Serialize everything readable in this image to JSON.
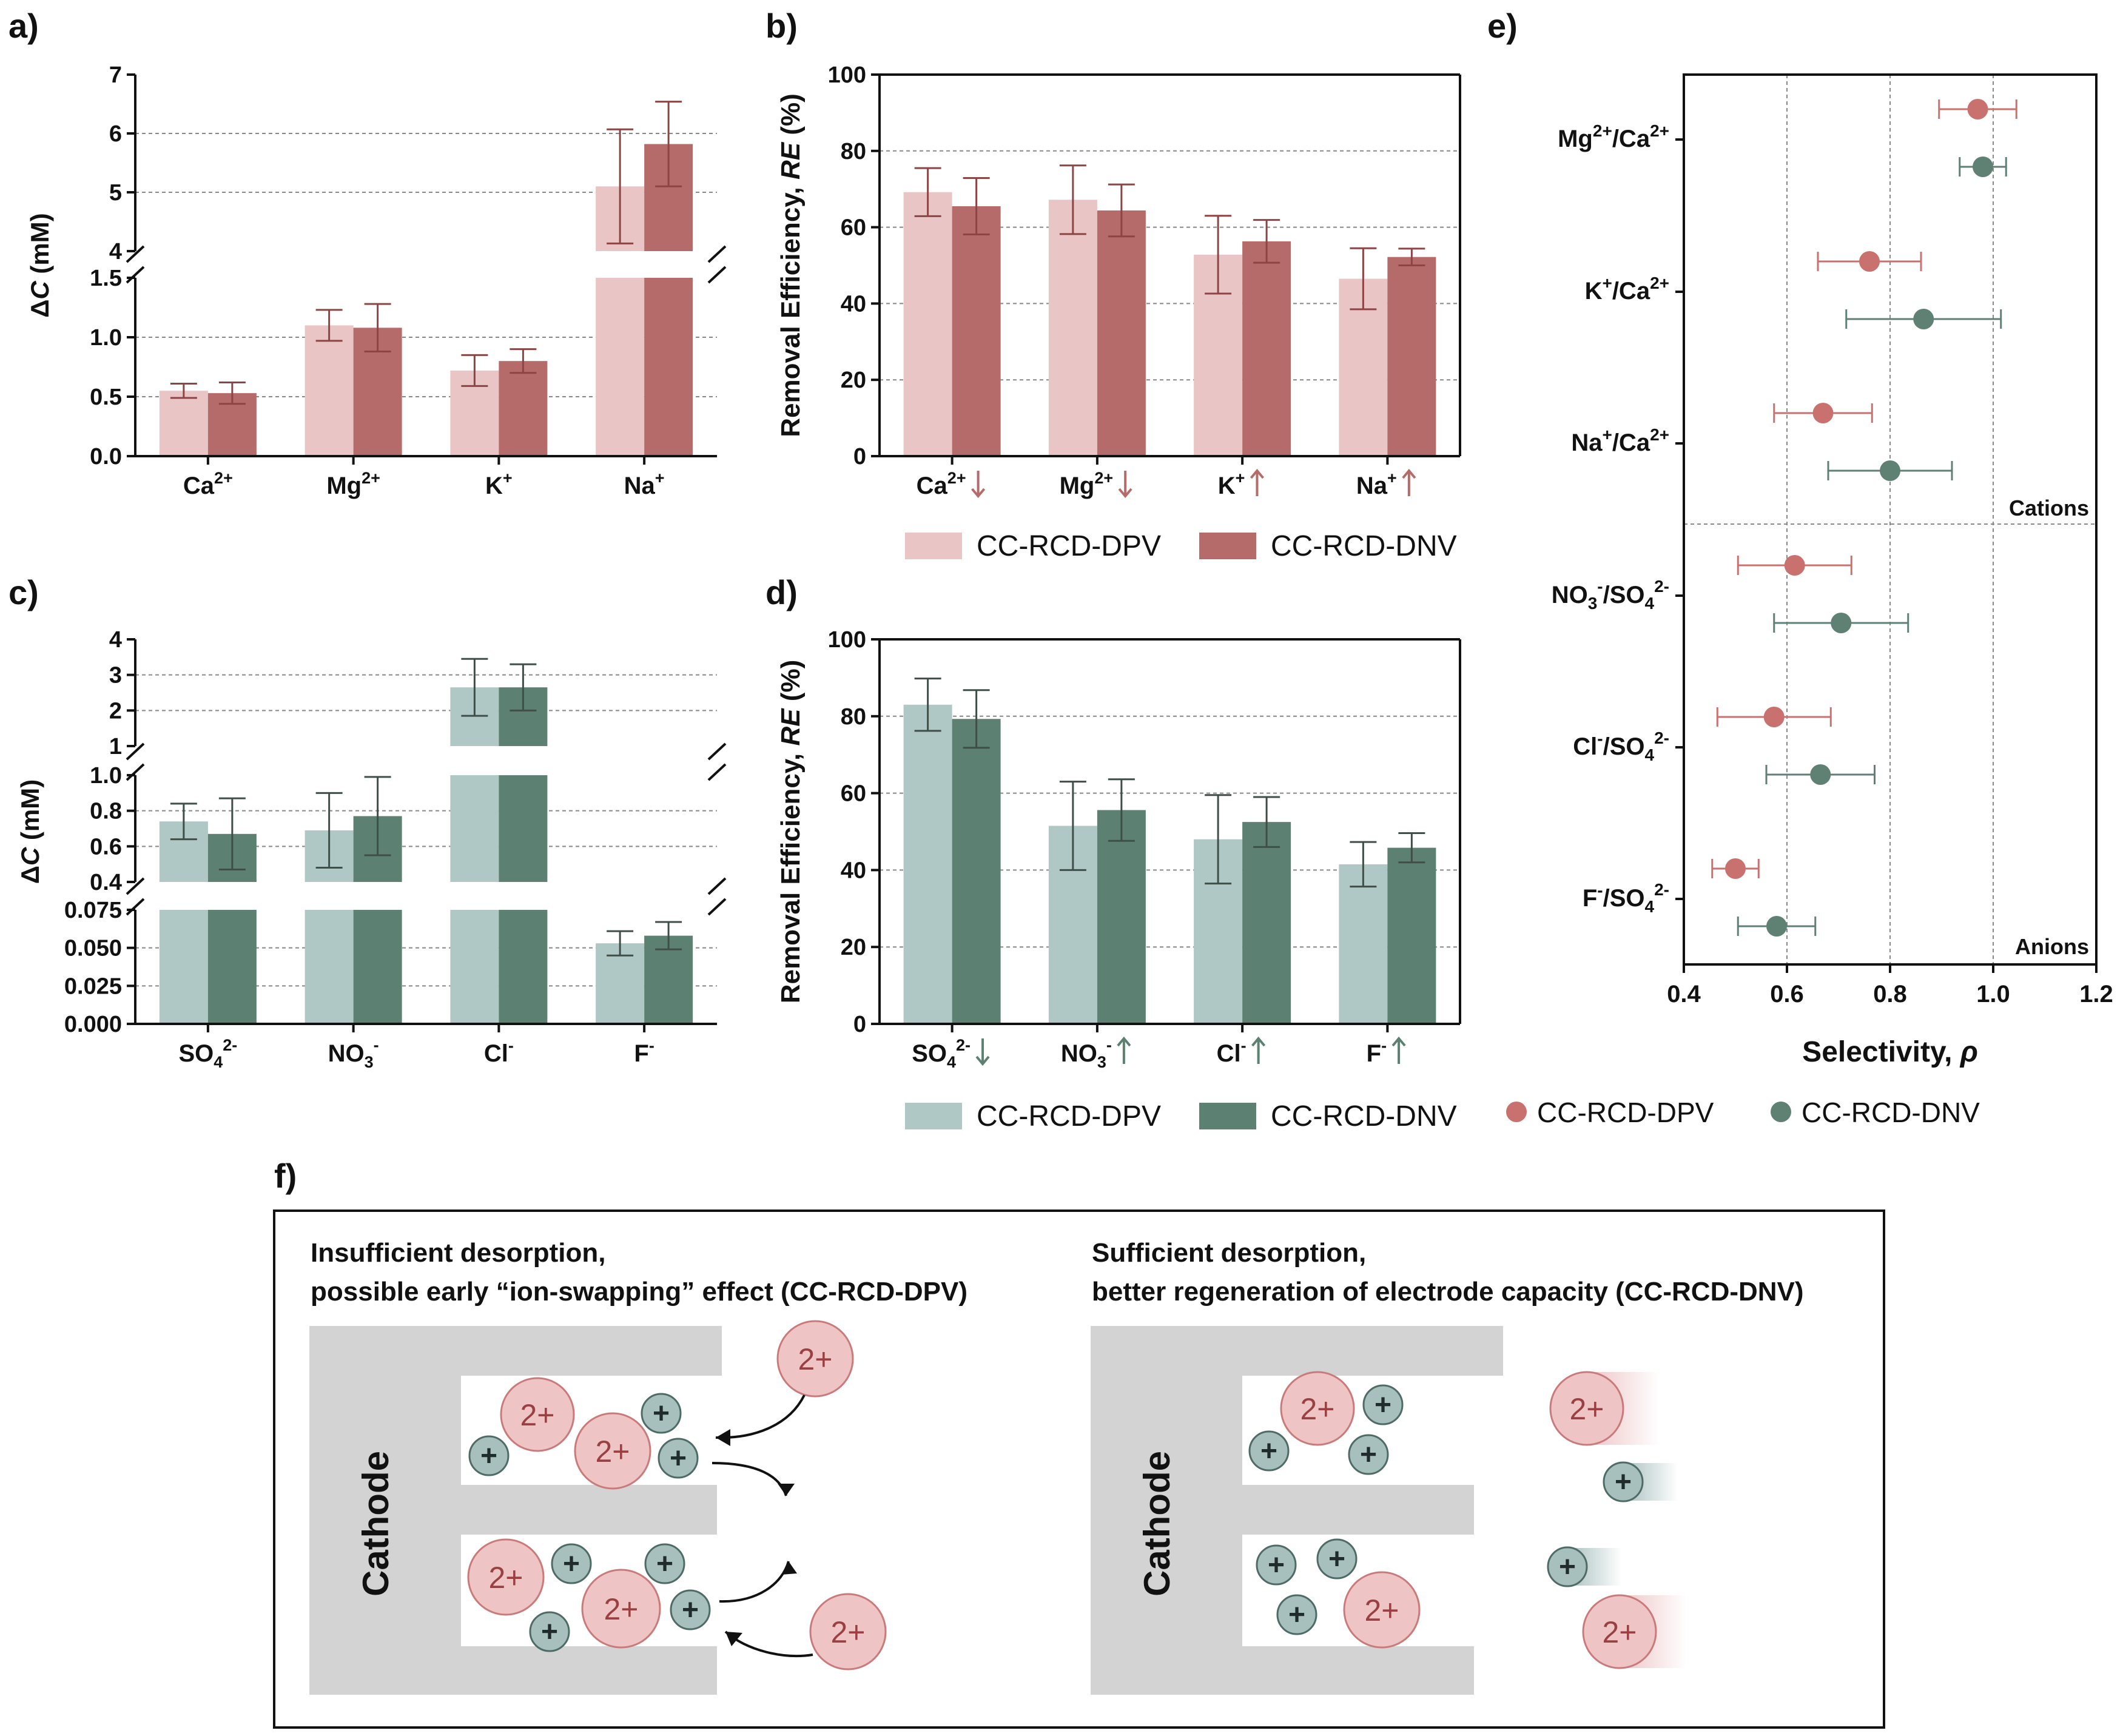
{
  "colors": {
    "red_light": "#e9c6c5",
    "red_dark": "#b66b6b",
    "red_err": "#8c4444",
    "red_marker": "#c9716f",
    "green_light": "#afc8c5",
    "green_dark": "#5c8071",
    "green_err": "#3f4f47",
    "green_marker": "#5f8174",
    "ion_fill": "#eec4c5",
    "ion_edge": "#c97a7b",
    "ion_text": "#9a3f42",
    "cat_fill": "#a7c0bd",
    "cat_edge": "#4e6b66",
    "electrode": "#d3d3d3"
  },
  "chart_data": [
    {
      "panel": "a)",
      "type": "bar",
      "ylabel_prefix": "Δ",
      "ylabel_var": "C",
      "ylabel_unit": " (mM)",
      "categories": [
        {
          "base": "Ca",
          "sup": "2+",
          "sub": ""
        },
        {
          "base": "Mg",
          "sup": "2+",
          "sub": ""
        },
        {
          "base": "K",
          "sup": "+",
          "sub": ""
        },
        {
          "base": "Na",
          "sup": "+",
          "sub": ""
        }
      ],
      "series": [
        {
          "name": "CC-RCD-DPV",
          "values": [
            0.55,
            1.1,
            0.72,
            5.1
          ],
          "errors": [
            0.06,
            0.13,
            0.13,
            0.97
          ]
        },
        {
          "name": "CC-RCD-DNV",
          "values": [
            0.53,
            1.08,
            0.8,
            5.82
          ],
          "errors": [
            0.09,
            0.2,
            0.1,
            0.72
          ]
        }
      ],
      "lower_ylim": [
        0,
        1.5
      ],
      "lower_ticks": [
        "0.0",
        "0.5",
        "1.0",
        "1.5"
      ],
      "upper_ylim": [
        4,
        7
      ],
      "upper_ticks": [
        "4",
        "5",
        "6",
        "7"
      ]
    },
    {
      "panel": "b)",
      "type": "bar",
      "ylabel_prefix": "Removal Efficiency, ",
      "ylabel_var": "RE",
      "ylabel_unit": " (%)",
      "categories": [
        {
          "base": "Ca",
          "sup": "2+",
          "sub": "",
          "arrow": "down"
        },
        {
          "base": "Mg",
          "sup": "2+",
          "sub": "",
          "arrow": "down"
        },
        {
          "base": "K",
          "sup": "+",
          "sub": "",
          "arrow": "up"
        },
        {
          "base": "Na",
          "sup": "+",
          "sub": "",
          "arrow": "up"
        }
      ],
      "series": [
        {
          "name": "CC-RCD-DPV",
          "values": [
            69.2,
            67.2,
            52.8,
            46.5
          ],
          "errors": [
            6.3,
            9.0,
            10.2,
            8.0
          ]
        },
        {
          "name": "CC-RCD-DNV",
          "values": [
            65.5,
            64.4,
            56.3,
            52.2
          ],
          "errors": [
            7.4,
            6.8,
            5.6,
            2.2
          ]
        }
      ],
      "ylim": [
        0,
        100
      ],
      "ticks": [
        "0",
        "20",
        "40",
        "60",
        "80",
        "100"
      ],
      "legend": [
        "CC-RCD-DPV",
        "CC-RCD-DNV"
      ]
    },
    {
      "panel": "c)",
      "type": "bar",
      "ylabel_prefix": "Δ",
      "ylabel_var": "C",
      "ylabel_unit": " (mM)",
      "categories": [
        {
          "base": "SO",
          "sub": "4",
          "sup": "2-"
        },
        {
          "base": "NO",
          "sub": "3",
          "sup": "-"
        },
        {
          "base": "Cl",
          "sub": "",
          "sup": "-"
        },
        {
          "base": "F",
          "sub": "",
          "sup": "-"
        }
      ],
      "series": [
        {
          "name": "CC-RCD-DPV",
          "values": [
            0.74,
            0.69,
            2.65,
            0.053
          ],
          "errors": [
            0.1,
            0.21,
            0.8,
            0.008
          ]
        },
        {
          "name": "CC-RCD-DNV",
          "values": [
            0.67,
            0.77,
            2.65,
            0.058
          ],
          "errors": [
            0.2,
            0.22,
            0.65,
            0.009
          ]
        }
      ],
      "top_ylim": [
        1,
        4
      ],
      "top_ticks": [
        "1",
        "2",
        "3",
        "4"
      ],
      "mid_ylim": [
        0.4,
        1.0
      ],
      "mid_ticks": [
        "0.4",
        "0.6",
        "0.8",
        "1.0"
      ],
      "low_ylim": [
        0,
        0.075
      ],
      "low_ticks": [
        "0.000",
        "0.025",
        "0.050",
        "0.075"
      ]
    },
    {
      "panel": "d)",
      "type": "bar",
      "ylabel_prefix": "Removal Efficiency, ",
      "ylabel_var": "RE",
      "ylabel_unit": " (%)",
      "categories": [
        {
          "base": "SO",
          "sub": "4",
          "sup": "2-",
          "arrow": "down"
        },
        {
          "base": "NO",
          "sub": "3",
          "sup": "-",
          "arrow": "up"
        },
        {
          "base": "Cl",
          "sub": "",
          "sup": "-",
          "arrow": "up"
        },
        {
          "base": "F",
          "sub": "",
          "sup": "-",
          "arrow": "up"
        }
      ],
      "series": [
        {
          "name": "CC-RCD-DPV",
          "values": [
            83.0,
            51.5,
            48.0,
            41.5
          ],
          "errors": [
            6.8,
            11.5,
            11.5,
            5.8
          ]
        },
        {
          "name": "CC-RCD-DNV",
          "values": [
            79.3,
            55.6,
            52.5,
            45.8
          ],
          "errors": [
            7.5,
            8.0,
            6.5,
            3.8
          ]
        }
      ],
      "ylim": [
        0,
        100
      ],
      "ticks": [
        "0",
        "20",
        "40",
        "60",
        "80",
        "100"
      ],
      "legend": [
        "CC-RCD-DPV",
        "CC-RCD-DNV"
      ]
    },
    {
      "panel": "e)",
      "type": "scatter",
      "xlabel_text": "Selectivity, ",
      "xlabel_var": "ρ",
      "xlim": [
        0.4,
        1.2
      ],
      "xticks": [
        "0.4",
        "0.6",
        "0.8",
        "1.0",
        "1.2"
      ],
      "reference_lines": [
        0.6,
        0.8,
        1.0
      ],
      "section_labels": [
        "Cations",
        "Anions"
      ],
      "ratios": [
        {
          "a": "Mg",
          "a_sub": "",
          "a_sup": "2+",
          "b": "Ca",
          "b_sub": "",
          "b_sup": "2+",
          "dpv": 0.97,
          "dpv_err": 0.075,
          "dnv": 0.98,
          "dnv_err": 0.045
        },
        {
          "a": "K",
          "a_sub": "",
          "a_sup": "+",
          "b": "Ca",
          "b_sub": "",
          "b_sup": "2+",
          "dpv": 0.76,
          "dpv_err": 0.1,
          "dnv": 0.865,
          "dnv_err": 0.15
        },
        {
          "a": "Na",
          "a_sub": "",
          "a_sup": "+",
          "b": "Ca",
          "b_sub": "",
          "b_sup": "2+",
          "dpv": 0.67,
          "dpv_err": 0.095,
          "dnv": 0.8,
          "dnv_err": 0.12
        },
        {
          "a": "NO",
          "a_sub": "3",
          "a_sup": "-",
          "b": "SO",
          "b_sub": "4",
          "b_sup": "2-",
          "dpv": 0.615,
          "dpv_err": 0.11,
          "dnv": 0.705,
          "dnv_err": 0.13
        },
        {
          "a": "Cl",
          "a_sub": "",
          "a_sup": "-",
          "b": "SO",
          "b_sub": "4",
          "b_sup": "2-",
          "dpv": 0.575,
          "dpv_err": 0.11,
          "dnv": 0.665,
          "dnv_err": 0.105
        },
        {
          "a": "F",
          "a_sub": "",
          "a_sup": "-",
          "b": "SO",
          "b_sub": "4",
          "b_sup": "2-",
          "dpv": 0.5,
          "dpv_err": 0.045,
          "dnv": 0.58,
          "dnv_err": 0.075
        }
      ],
      "legend": [
        "CC-RCD-DPV",
        "CC-RCD-DNV"
      ]
    }
  ],
  "schematic": {
    "panel": "f)",
    "left_title_1": "Insufficient desorption,",
    "left_title_2": "possible early “ion-swapping” effect (CC-RCD-DPV)",
    "right_title_1": "Sufficient desorption,",
    "right_title_2": "better regeneration of electrode capacity (CC-RCD-DNV)",
    "electrode_label": "Cathode",
    "divalent_label": "2+",
    "monovalent_label": "+"
  }
}
